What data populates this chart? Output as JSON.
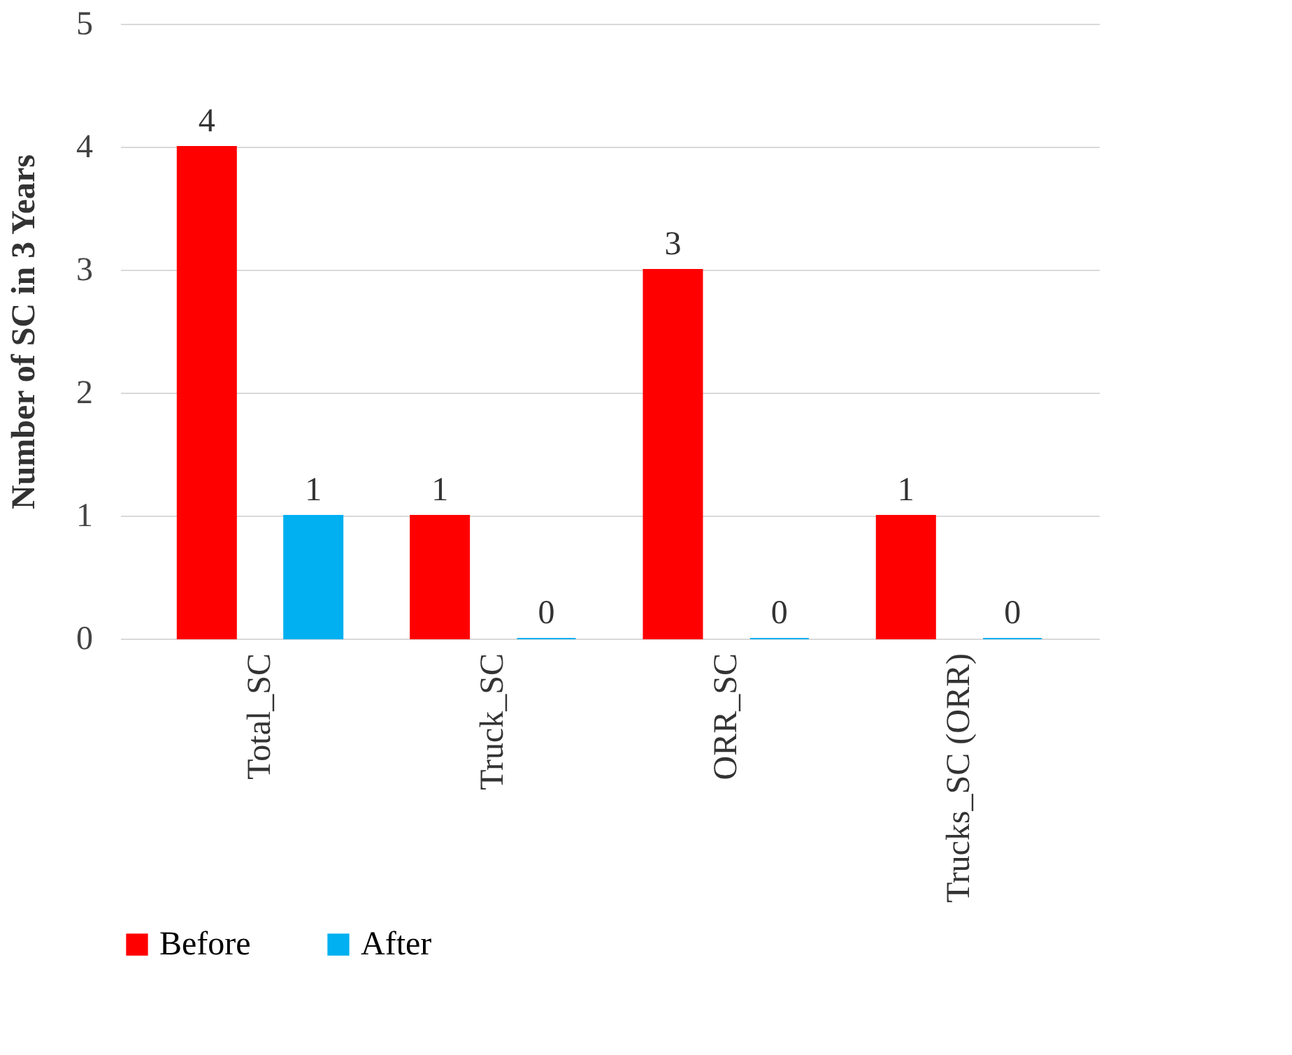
{
  "chart_data": {
    "type": "bar",
    "ylabel": "Number of SC in 3 Years",
    "categories": [
      "Total_SC",
      "Truck_SC",
      "ORR_SC",
      "Trucks_SC (ORR)"
    ],
    "series": [
      {
        "name": "Before",
        "color": "#ff0000",
        "values": [
          4,
          1,
          3,
          1
        ]
      },
      {
        "name": "After",
        "color": "#00b0f0",
        "values": [
          1,
          0,
          0,
          0
        ]
      }
    ],
    "ylim": [
      0,
      5
    ],
    "yticks": [
      0,
      1,
      2,
      3,
      4,
      5
    ],
    "grid": "y",
    "legend": "bottom",
    "data_labels": true
  }
}
